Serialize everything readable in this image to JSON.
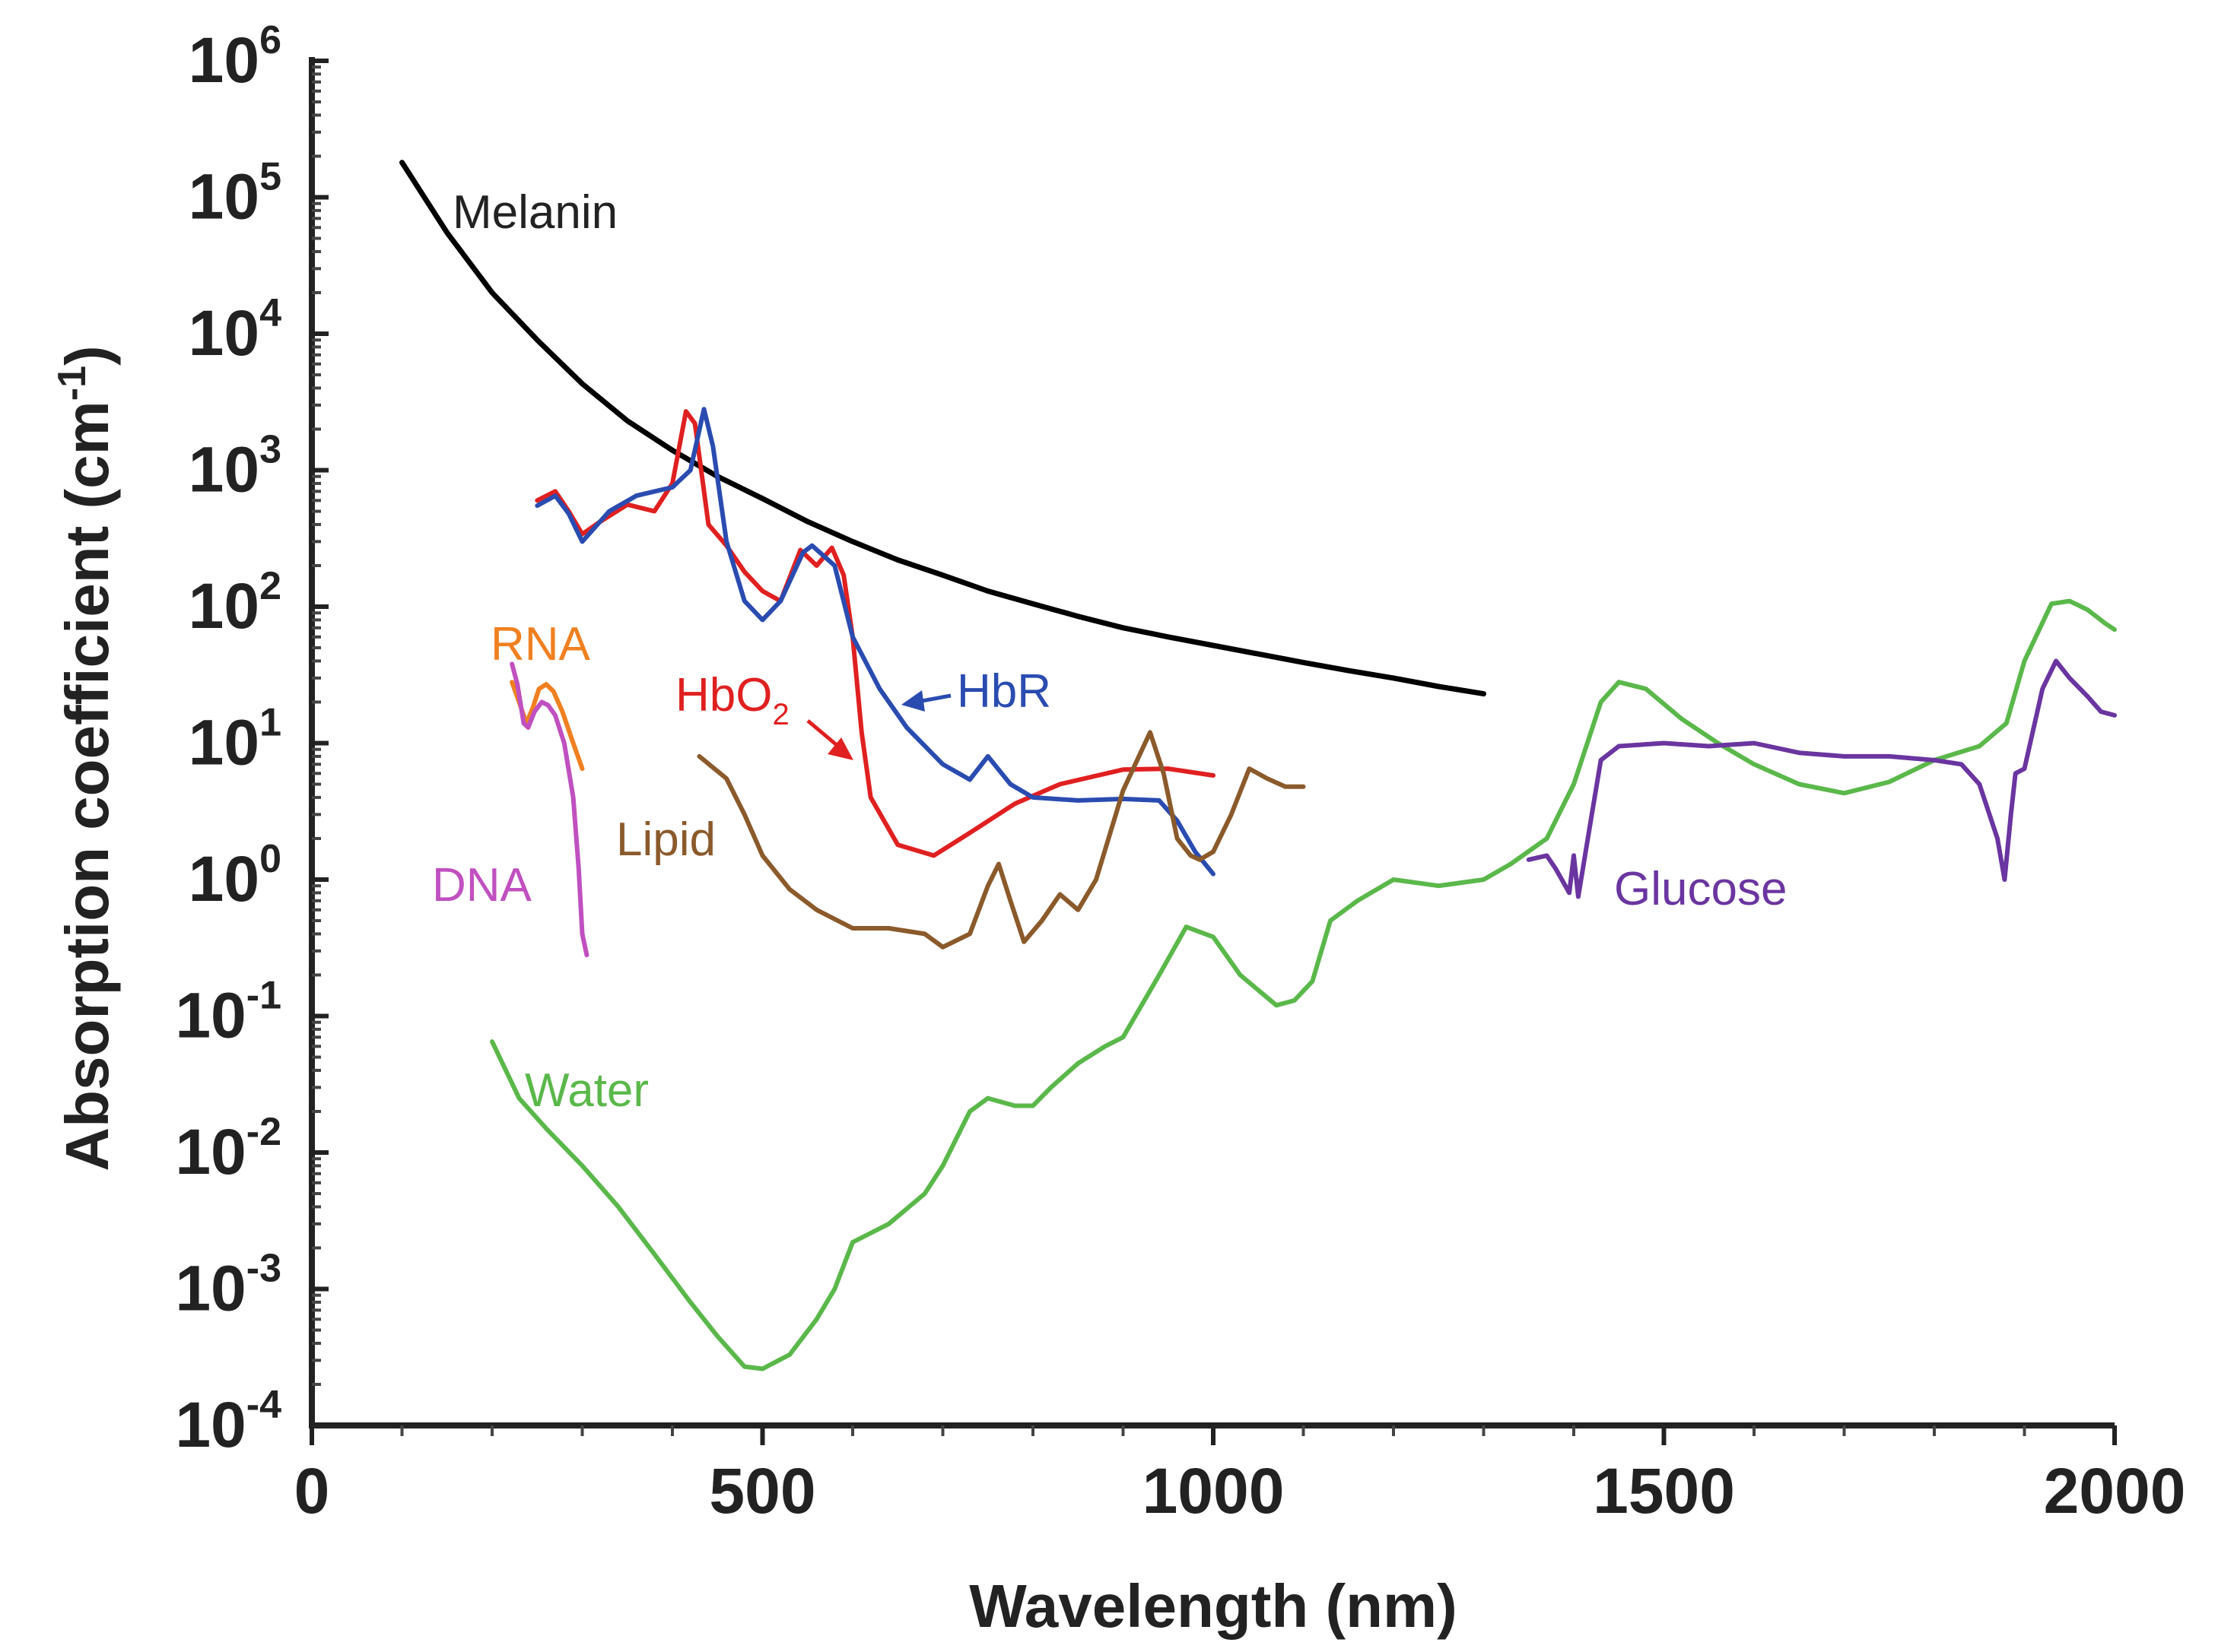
{
  "chart_data": {
    "type": "line",
    "xlabel": "Wavelength (nm)",
    "ylabel": "Absorption coefficient (cm⁻¹)",
    "ylabel_parts": {
      "main": "Absorption coefficient (cm",
      "sup": "-1",
      "close": ")"
    },
    "xlim": [
      0,
      2000
    ],
    "ylim_exponent": [
      -4,
      6
    ],
    "y_scale": "log",
    "x_ticks": [
      "0",
      "500",
      "1000",
      "1500",
      "2000"
    ],
    "y_ticks": [
      {
        "base": "10",
        "exp": "-4"
      },
      {
        "base": "10",
        "exp": "-3"
      },
      {
        "base": "10",
        "exp": "-2"
      },
      {
        "base": "10",
        "exp": "-1"
      },
      {
        "base": "10",
        "exp": "0"
      },
      {
        "base": "10",
        "exp": "1"
      },
      {
        "base": "10",
        "exp": "2"
      },
      {
        "base": "10",
        "exp": "3"
      },
      {
        "base": "10",
        "exp": "4"
      },
      {
        "base": "10",
        "exp": "5"
      },
      {
        "base": "10",
        "exp": "6"
      }
    ],
    "series": [
      {
        "name": "Melanin",
        "color": "#000000",
        "points": [
          [
            100,
            180000
          ],
          [
            150,
            55000
          ],
          [
            200,
            20000
          ],
          [
            250,
            9000
          ],
          [
            300,
            4300
          ],
          [
            350,
            2300
          ],
          [
            400,
            1400
          ],
          [
            450,
            900
          ],
          [
            500,
            620
          ],
          [
            550,
            420
          ],
          [
            600,
            300
          ],
          [
            650,
            220
          ],
          [
            700,
            170
          ],
          [
            750,
            130
          ],
          [
            800,
            105
          ],
          [
            850,
            85
          ],
          [
            900,
            70
          ],
          [
            950,
            60
          ],
          [
            1000,
            52
          ],
          [
            1050,
            45
          ],
          [
            1100,
            39
          ],
          [
            1150,
            34
          ],
          [
            1200,
            30
          ],
          [
            1250,
            26
          ],
          [
            1300,
            23
          ]
        ]
      },
      {
        "name": "HbO",
        "name_sub": "2",
        "color": "#e02020",
        "points": [
          [
            250,
            600
          ],
          [
            270,
            700
          ],
          [
            285,
            500
          ],
          [
            300,
            340
          ],
          [
            320,
            420
          ],
          [
            350,
            560
          ],
          [
            380,
            500
          ],
          [
            400,
            800
          ],
          [
            415,
            2700
          ],
          [
            425,
            2200
          ],
          [
            440,
            400
          ],
          [
            460,
            280
          ],
          [
            480,
            180
          ],
          [
            500,
            130
          ],
          [
            520,
            110
          ],
          [
            542,
            260
          ],
          [
            560,
            200
          ],
          [
            577,
            270
          ],
          [
            590,
            170
          ],
          [
            600,
            60
          ],
          [
            610,
            12
          ],
          [
            620,
            4
          ],
          [
            650,
            1.8
          ],
          [
            690,
            1.5
          ],
          [
            730,
            2.2
          ],
          [
            780,
            3.6
          ],
          [
            830,
            5
          ],
          [
            900,
            6.4
          ],
          [
            950,
            6.5
          ],
          [
            1000,
            5.8
          ]
        ]
      },
      {
        "name": "HbR",
        "color": "#2a4cb0",
        "points": [
          [
            250,
            550
          ],
          [
            270,
            650
          ],
          [
            285,
            480
          ],
          [
            300,
            300
          ],
          [
            330,
            500
          ],
          [
            360,
            650
          ],
          [
            400,
            750
          ],
          [
            420,
            1000
          ],
          [
            435,
            2800
          ],
          [
            445,
            1500
          ],
          [
            460,
            300
          ],
          [
            480,
            110
          ],
          [
            500,
            80
          ],
          [
            520,
            110
          ],
          [
            545,
            250
          ],
          [
            555,
            280
          ],
          [
            580,
            200
          ],
          [
            600,
            60
          ],
          [
            630,
            25
          ],
          [
            660,
            13
          ],
          [
            700,
            7
          ],
          [
            730,
            5.4
          ],
          [
            750,
            8
          ],
          [
            775,
            5
          ],
          [
            800,
            4
          ],
          [
            850,
            3.8
          ],
          [
            900,
            3.9
          ],
          [
            940,
            3.8
          ],
          [
            960,
            2.7
          ],
          [
            980,
            1.6
          ],
          [
            1000,
            1.1
          ]
        ]
      },
      {
        "name": "RNA",
        "color": "#f08020",
        "points": [
          [
            222,
            28
          ],
          [
            230,
            20
          ],
          [
            238,
            14
          ],
          [
            245,
            18
          ],
          [
            252,
            25
          ],
          [
            260,
            27
          ],
          [
            268,
            24
          ],
          [
            278,
            17
          ],
          [
            290,
            10
          ],
          [
            300,
            6.5
          ]
        ]
      },
      {
        "name": "DNA",
        "color": "#c050c0",
        "points": [
          [
            222,
            38
          ],
          [
            228,
            27
          ],
          [
            235,
            14
          ],
          [
            240,
            13
          ],
          [
            247,
            17
          ],
          [
            255,
            20
          ],
          [
            262,
            19
          ],
          [
            270,
            16
          ],
          [
            280,
            10
          ],
          [
            290,
            4
          ],
          [
            296,
            1.2
          ],
          [
            300,
            0.4
          ],
          [
            305,
            0.28
          ]
        ]
      },
      {
        "name": "Lipid",
        "color": "#8b5a2b",
        "points": [
          [
            430,
            8
          ],
          [
            460,
            5.5
          ],
          [
            480,
            3
          ],
          [
            500,
            1.5
          ],
          [
            530,
            0.85
          ],
          [
            560,
            0.6
          ],
          [
            600,
            0.44
          ],
          [
            640,
            0.44
          ],
          [
            680,
            0.4
          ],
          [
            700,
            0.32
          ],
          [
            730,
            0.4
          ],
          [
            750,
            0.9
          ],
          [
            762,
            1.3
          ],
          [
            775,
            0.7
          ],
          [
            790,
            0.35
          ],
          [
            810,
            0.5
          ],
          [
            830,
            0.78
          ],
          [
            850,
            0.6
          ],
          [
            870,
            1.0
          ],
          [
            900,
            4.5
          ],
          [
            930,
            12
          ],
          [
            945,
            6
          ],
          [
            960,
            2
          ],
          [
            975,
            1.5
          ],
          [
            985,
            1.4
          ],
          [
            1000,
            1.6
          ],
          [
            1020,
            3
          ],
          [
            1040,
            6.5
          ],
          [
            1060,
            5.5
          ],
          [
            1080,
            4.8
          ],
          [
            1100,
            4.8
          ]
        ]
      },
      {
        "name": "Water",
        "color": "#5ab84a",
        "points": [
          [
            200,
            0.065
          ],
          [
            230,
            0.025
          ],
          [
            260,
            0.015
          ],
          [
            300,
            0.008
          ],
          [
            340,
            0.004
          ],
          [
            380,
            0.0018
          ],
          [
            420,
            0.0008
          ],
          [
            450,
            0.00045
          ],
          [
            480,
            0.00027
          ],
          [
            500,
            0.00026
          ],
          [
            530,
            0.00033
          ],
          [
            560,
            0.0006
          ],
          [
            580,
            0.001
          ],
          [
            600,
            0.0022
          ],
          [
            640,
            0.003
          ],
          [
            680,
            0.005
          ],
          [
            700,
            0.008
          ],
          [
            730,
            0.02
          ],
          [
            750,
            0.025
          ],
          [
            780,
            0.022
          ],
          [
            800,
            0.022
          ],
          [
            820,
            0.03
          ],
          [
            850,
            0.045
          ],
          [
            880,
            0.06
          ],
          [
            900,
            0.07
          ],
          [
            940,
            0.2
          ],
          [
            970,
            0.45
          ],
          [
            1000,
            0.38
          ],
          [
            1030,
            0.2
          ],
          [
            1070,
            0.12
          ],
          [
            1090,
            0.13
          ],
          [
            1110,
            0.18
          ],
          [
            1130,
            0.5
          ],
          [
            1160,
            0.7
          ],
          [
            1200,
            1.0
          ],
          [
            1250,
            0.9
          ],
          [
            1300,
            1.0
          ],
          [
            1330,
            1.3
          ],
          [
            1370,
            2
          ],
          [
            1400,
            5
          ],
          [
            1430,
            20
          ],
          [
            1450,
            28
          ],
          [
            1480,
            25
          ],
          [
            1520,
            15
          ],
          [
            1560,
            10
          ],
          [
            1600,
            7
          ],
          [
            1650,
            5
          ],
          [
            1700,
            4.3
          ],
          [
            1750,
            5.2
          ],
          [
            1800,
            7.5
          ],
          [
            1850,
            9.5
          ],
          [
            1880,
            14
          ],
          [
            1900,
            40
          ],
          [
            1930,
            105
          ],
          [
            1950,
            110
          ],
          [
            1970,
            95
          ],
          [
            1990,
            75
          ],
          [
            2000,
            68
          ]
        ]
      },
      {
        "name": "Glucose",
        "color": "#6a35a0",
        "points": [
          [
            1350,
            1.4
          ],
          [
            1370,
            1.5
          ],
          [
            1380,
            1.2
          ],
          [
            1395,
            0.8
          ],
          [
            1400,
            1.5
          ],
          [
            1405,
            0.75
          ],
          [
            1420,
            3
          ],
          [
            1430,
            7.5
          ],
          [
            1450,
            9.5
          ],
          [
            1500,
            10
          ],
          [
            1550,
            9.5
          ],
          [
            1600,
            10
          ],
          [
            1650,
            8.5
          ],
          [
            1700,
            8
          ],
          [
            1750,
            8
          ],
          [
            1800,
            7.5
          ],
          [
            1830,
            7
          ],
          [
            1850,
            5
          ],
          [
            1870,
            2
          ],
          [
            1878,
            1.0
          ],
          [
            1885,
            3
          ],
          [
            1890,
            6
          ],
          [
            1900,
            6.5
          ],
          [
            1920,
            25
          ],
          [
            1935,
            40
          ],
          [
            1950,
            30
          ],
          [
            1970,
            22
          ],
          [
            1985,
            17
          ],
          [
            2000,
            16
          ]
        ]
      }
    ],
    "labels": [
      {
        "series": "Melanin",
        "text": "Melanin",
        "color": "#222222"
      },
      {
        "series": "HbO",
        "text": "HbO",
        "sub": "2",
        "color": "#e02020"
      },
      {
        "series": "HbR",
        "text": "HbR",
        "color": "#2a4cb0"
      },
      {
        "series": "RNA",
        "text": "RNA",
        "color": "#f08020"
      },
      {
        "series": "DNA",
        "text": "DNA",
        "color": "#c050c0"
      },
      {
        "series": "Lipid",
        "text": "Lipid",
        "color": "#8b5a2b"
      },
      {
        "series": "Water",
        "text": "Water",
        "color": "#5ab84a"
      },
      {
        "series": "Glucose",
        "text": "Glucose",
        "color": "#6a35a0"
      }
    ]
  }
}
